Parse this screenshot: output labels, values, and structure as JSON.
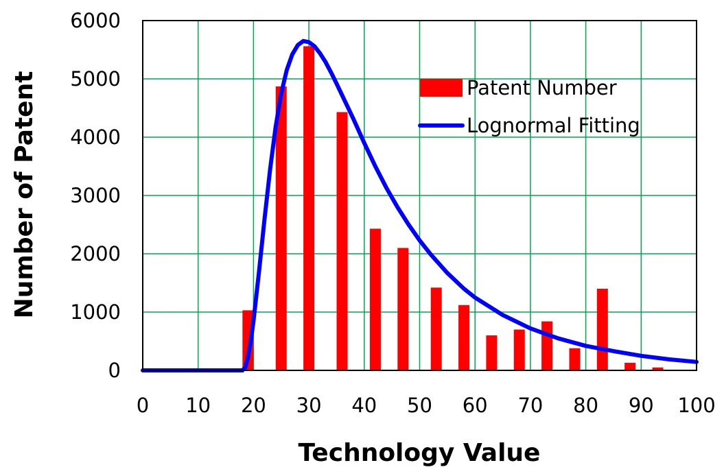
{
  "chart_data": {
    "type": "bar",
    "xlabel": "Technology Value",
    "ylabel": "Number of Patent",
    "xlim": [
      0,
      100
    ],
    "ylim": [
      0,
      6000
    ],
    "xticks": [
      0,
      10,
      20,
      30,
      40,
      50,
      60,
      70,
      80,
      90,
      100
    ],
    "yticks": [
      0,
      1000,
      2000,
      3000,
      4000,
      5000,
      6000
    ],
    "grid": true,
    "legend_position": "top-right",
    "colors": {
      "bars": "#ff0000",
      "curve": "#0000ff",
      "grid": "#00a651"
    },
    "series": [
      {
        "name": "Patent Number",
        "type": "bar",
        "x": [
          19,
          25,
          30,
          36,
          42,
          47,
          53,
          58,
          63,
          68,
          73,
          78,
          83,
          88,
          93
        ],
        "values": [
          1030,
          4870,
          5560,
          4430,
          2430,
          2100,
          1420,
          1120,
          600,
          700,
          840,
          380,
          1400,
          130,
          50
        ]
      },
      {
        "name": "Lognormal Fitting",
        "type": "line",
        "x": [
          0,
          18,
          18.5,
          19,
          19.5,
          20,
          21,
          22,
          23,
          24,
          25,
          26,
          27,
          28,
          29,
          30,
          31,
          32,
          33,
          34,
          35,
          36,
          38,
          40,
          42,
          44,
          46,
          48,
          50,
          52,
          55,
          58,
          60,
          65,
          70,
          75,
          80,
          85,
          90,
          95,
          100
        ],
        "values": [
          0,
          0,
          50,
          220,
          500,
          850,
          1700,
          2600,
          3450,
          4180,
          4750,
          5150,
          5420,
          5580,
          5650,
          5630,
          5560,
          5440,
          5290,
          5110,
          4920,
          4720,
          4320,
          3900,
          3500,
          3130,
          2800,
          2500,
          2230,
          1990,
          1670,
          1400,
          1250,
          950,
          720,
          550,
          420,
          330,
          250,
          190,
          145
        ]
      }
    ]
  }
}
